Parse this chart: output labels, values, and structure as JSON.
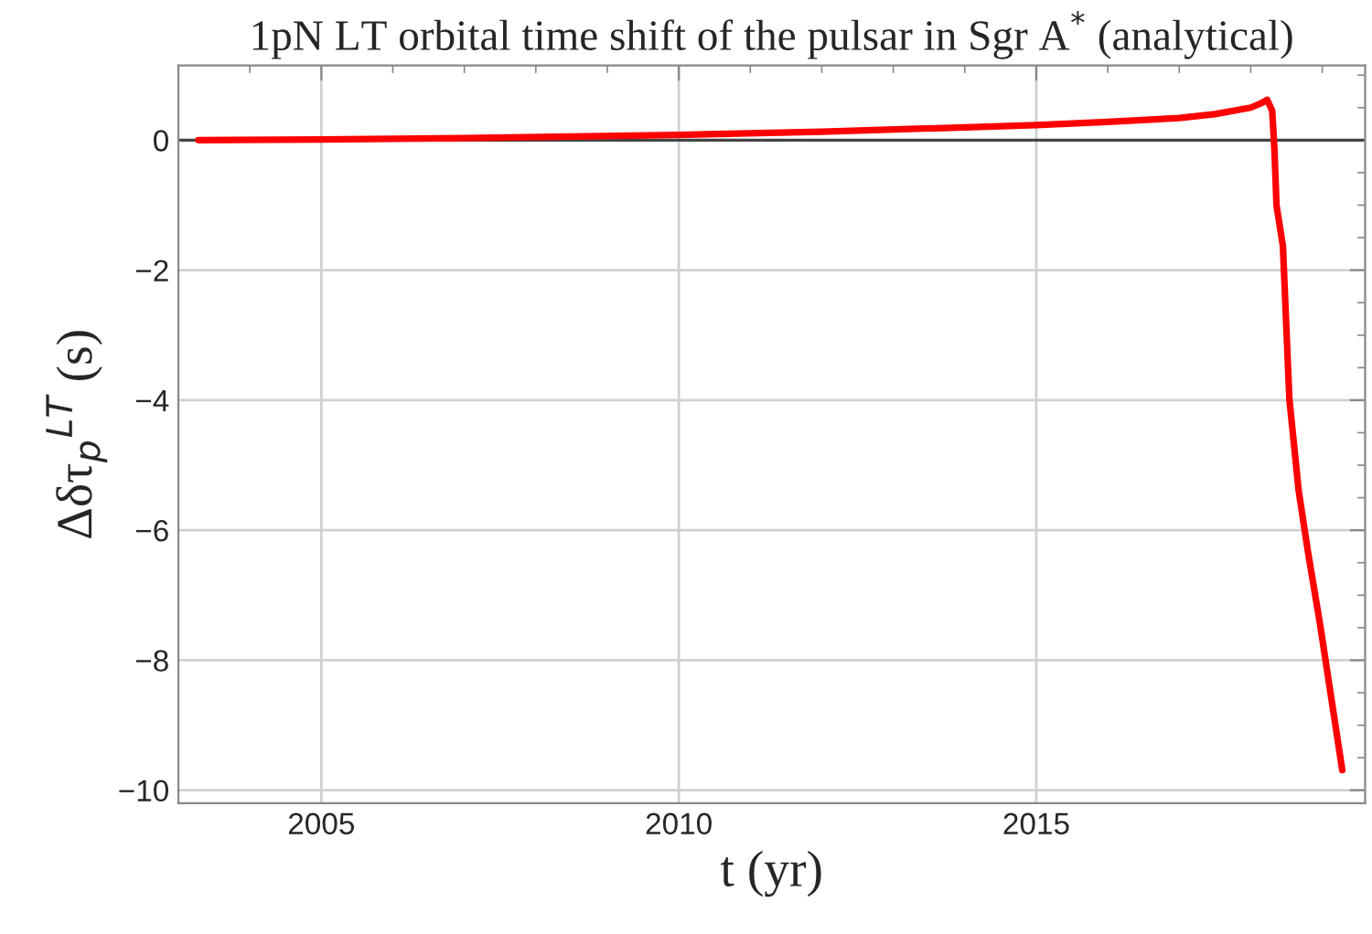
{
  "chart_data": {
    "type": "line",
    "title": "1pN LT orbital time shift of the pulsar in Sgr A$^{*}$ (analytical)",
    "xlabel": "t (yr)",
    "ylabel": "Δδτ$_{p}$$^{LT}$ (s)",
    "xlim": [
      2003,
      2019.6
    ],
    "ylim": [
      -10.2,
      1.15
    ],
    "xticks": [
      2005,
      2010,
      2015
    ],
    "yticks": [
      {
        "value": 0,
        "label": "0"
      },
      {
        "value": -2,
        "label": "−2"
      },
      {
        "value": -4,
        "label": "−4"
      },
      {
        "value": -6,
        "label": "−6"
      },
      {
        "value": -8,
        "label": "−8"
      },
      {
        "value": -10,
        "label": "−10"
      }
    ],
    "grid": true,
    "ref_lines": [
      {
        "axis": "y",
        "value": 0,
        "color": "#444444"
      }
    ],
    "series": [
      {
        "color": "#ff0000",
        "x": [
          2003.28,
          2005,
          2007,
          2010,
          2012,
          2015,
          2016,
          2017,
          2017.5,
          2018,
          2018.15,
          2018.23,
          2018.3,
          2018.33,
          2018.35,
          2018.36,
          2018.45,
          2018.54,
          2018.67,
          2018.8,
          2018.97,
          2019.14,
          2019.28
        ],
        "values": [
          0,
          0.01,
          0.03,
          0.08,
          0.13,
          0.23,
          0.28,
          0.34,
          0.4,
          0.5,
          0.57,
          0.62,
          0.45,
          -0.12,
          -0.69,
          -1.0,
          -1.63,
          -3.98,
          -5.39,
          -6.33,
          -7.45,
          -8.68,
          -9.69
        ]
      }
    ]
  }
}
